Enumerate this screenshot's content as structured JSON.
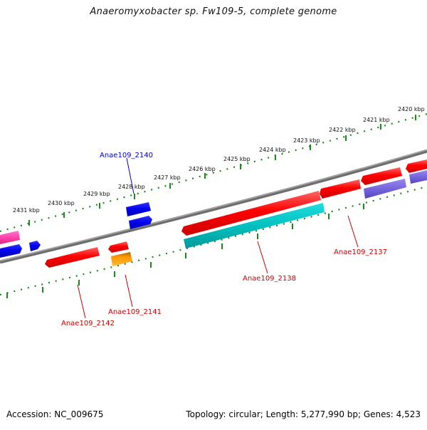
{
  "title": "Anaeromyxobacter sp. Fw109-5, complete genome",
  "footer": {
    "accession": "Accession: NC_009675",
    "summary": "Topology: circular; Length: 5,277,990 bp; Genes: 4,523"
  },
  "ruler_ticks": [
    {
      "label": "2420 kbp"
    },
    {
      "label": "2421 kbp"
    },
    {
      "label": "2422 kbp"
    },
    {
      "label": "2423 kbp"
    },
    {
      "label": "2424 kbp"
    },
    {
      "label": "2425 kbp"
    },
    {
      "label": "2426 kbp"
    },
    {
      "label": "2427 kbp"
    },
    {
      "label": "2428 kbp"
    },
    {
      "label": "2429 kbp"
    },
    {
      "label": "2430 kbp"
    },
    {
      "label": "2431 kbp"
    }
  ],
  "gene_labels": [
    {
      "text": "Anae109_2140",
      "color": "#0000cc"
    },
    {
      "text": "Anae109_2138",
      "color": "#cc0000"
    },
    {
      "text": "Anae109_2137",
      "color": "#cc0000"
    },
    {
      "text": "Anae109_2141",
      "color": "#cc0000"
    },
    {
      "text": "Anae109_2142",
      "color": "#cc0000"
    }
  ],
  "colors": {
    "backbone": "#808080",
    "ruler_dots": "#1a8a1a",
    "gene_red": "#ff0000",
    "gene_blue": "#0000ee",
    "gene_cyan": "#00c0c0",
    "gene_purple": "#7766dd",
    "gene_pink": "#ff44aa",
    "gene_orange": "#ff9900"
  }
}
